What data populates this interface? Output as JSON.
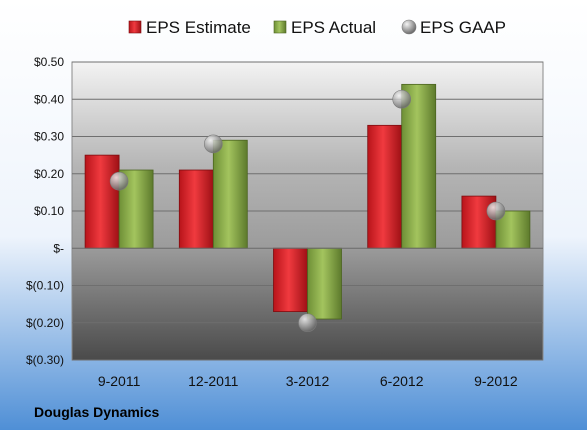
{
  "chart_data": {
    "type": "bar",
    "categories": [
      "9-2011",
      "12-2011",
      "3-2012",
      "6-2012",
      "9-2012"
    ],
    "series": [
      {
        "name": "EPS Estimate",
        "kind": "bar",
        "color": "#e0242a",
        "values": [
          0.25,
          0.21,
          -0.17,
          0.33,
          0.14
        ]
      },
      {
        "name": "EPS Actual",
        "kind": "bar",
        "color": "#8cb04a",
        "values": [
          0.21,
          0.29,
          -0.19,
          0.44,
          0.1
        ]
      },
      {
        "name": "EPS GAAP",
        "kind": "marker",
        "color": "#a9a9a9",
        "values": [
          0.18,
          0.28,
          -0.2,
          0.4,
          0.1
        ]
      }
    ],
    "ylim": [
      -0.3,
      0.5
    ],
    "ytick_values": [
      0.5,
      0.4,
      0.3,
      0.2,
      0.1,
      0,
      -0.1,
      -0.2,
      -0.3
    ],
    "ytick_labels": [
      "$0.50",
      "$0.40",
      "$0.30",
      "$0.20",
      "$0.10",
      "$-",
      "$(0.10)",
      "$(0.20)",
      "$(0.30)"
    ],
    "grid": true,
    "legend_position": "top",
    "company": "Douglas Dynamics"
  }
}
